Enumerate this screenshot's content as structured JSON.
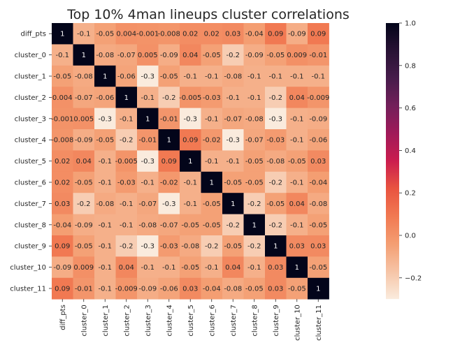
{
  "chart_data": {
    "type": "heatmap",
    "title": "Top 10% 4man lineups cluster correlations",
    "xlabel": "",
    "ylabel": "",
    "labels": [
      "diff_pts",
      "cluster_0",
      "cluster_1",
      "cluster_2",
      "cluster_3",
      "cluster_4",
      "cluster_5",
      "cluster_6",
      "cluster_7",
      "cluster_8",
      "cluster_9",
      "cluster_10",
      "cluster_11"
    ],
    "values": [
      [
        1,
        -0.1,
        -0.05,
        0.004,
        -0.001,
        -0.008,
        0.02,
        0.02,
        0.03,
        -0.04,
        0.09,
        -0.09,
        0.09
      ],
      [
        -0.1,
        1,
        -0.08,
        -0.07,
        0.005,
        -0.09,
        0.04,
        -0.05,
        -0.2,
        -0.09,
        -0.05,
        0.009,
        -0.01
      ],
      [
        -0.05,
        -0.08,
        1,
        -0.06,
        -0.3,
        -0.05,
        -0.1,
        -0.1,
        -0.08,
        -0.1,
        -0.1,
        -0.1,
        -0.1
      ],
      [
        0.004,
        -0.07,
        -0.06,
        1,
        -0.1,
        -0.2,
        -0.005,
        -0.03,
        -0.1,
        -0.1,
        -0.2,
        0.04,
        -0.009
      ],
      [
        -0.001,
        0.005,
        -0.3,
        -0.1,
        1,
        -0.01,
        -0.3,
        -0.1,
        -0.07,
        -0.08,
        -0.3,
        -0.1,
        -0.09
      ],
      [
        -0.008,
        -0.09,
        -0.05,
        -0.2,
        -0.01,
        1,
        0.09,
        -0.02,
        -0.3,
        -0.07,
        -0.03,
        -0.1,
        -0.06
      ],
      [
        0.02,
        0.04,
        -0.1,
        -0.005,
        -0.3,
        0.09,
        1,
        -0.1,
        -0.1,
        -0.05,
        -0.08,
        -0.05,
        0.03
      ],
      [
        0.02,
        -0.05,
        -0.1,
        -0.03,
        -0.1,
        -0.02,
        -0.1,
        1,
        -0.05,
        -0.05,
        -0.2,
        -0.1,
        -0.04
      ],
      [
        0.03,
        -0.2,
        -0.08,
        -0.1,
        -0.07,
        -0.3,
        -0.1,
        -0.05,
        1,
        -0.2,
        -0.05,
        0.04,
        -0.08
      ],
      [
        -0.04,
        -0.09,
        -0.1,
        -0.1,
        -0.08,
        -0.07,
        -0.05,
        -0.05,
        -0.2,
        1,
        -0.2,
        -0.1,
        -0.05
      ],
      [
        0.09,
        -0.05,
        -0.1,
        -0.2,
        -0.3,
        -0.03,
        -0.08,
        -0.2,
        -0.05,
        -0.2,
        1,
        0.03,
        0.03
      ],
      [
        -0.09,
        0.009,
        -0.1,
        0.04,
        -0.1,
        -0.1,
        -0.05,
        -0.1,
        0.04,
        -0.1,
        0.03,
        1,
        -0.05
      ],
      [
        0.09,
        -0.01,
        -0.1,
        -0.009,
        -0.09,
        -0.06,
        0.03,
        -0.04,
        -0.08,
        -0.05,
        0.03,
        -0.05,
        1
      ]
    ],
    "colorbar": {
      "min": -0.3,
      "max": 1.0,
      "ticks": [
        -0.2,
        0.0,
        0.2,
        0.4,
        0.6,
        0.8,
        1.0
      ],
      "tick_labels": [
        "−0.2",
        "0.0",
        "0.2",
        "0.4",
        "0.6",
        "0.8",
        "1.0"
      ],
      "colormap": "rocket_r"
    },
    "grid": false,
    "legend": "colorbar-right"
  }
}
